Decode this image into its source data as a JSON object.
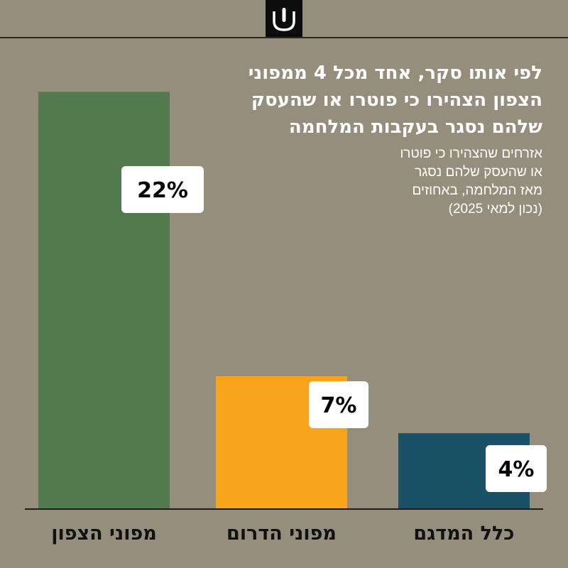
{
  "header": {
    "logo_icon": "shin-logo-icon"
  },
  "colors": {
    "background": "#968e7c",
    "north": "#537a4e",
    "south": "#f8a51c",
    "sample": "#1b5166",
    "label_box": "#ffffff"
  },
  "chart_data": {
    "type": "bar",
    "title": "לפי אותו סקר, אחד מכל 4 ממפוני הצפון הצהירו כי פוטרו או שהעסק שלהם נסגר בעקבות המלחמה",
    "subtitle": "אזרחים שהצהירו כי פוטרו\nאו שהעסק שלהם נסגר\nמאז המלחמה, באחוזים\n(נכון למאי 2025)",
    "categories": [
      "מפוני הצפון",
      "מפוני הדרום",
      "כלל המדגם"
    ],
    "values": [
      22,
      7,
      4
    ],
    "value_labels": [
      "22%",
      "7%",
      "4%"
    ],
    "ylim": [
      0,
      23.4
    ],
    "grid": false,
    "legend": "none"
  }
}
